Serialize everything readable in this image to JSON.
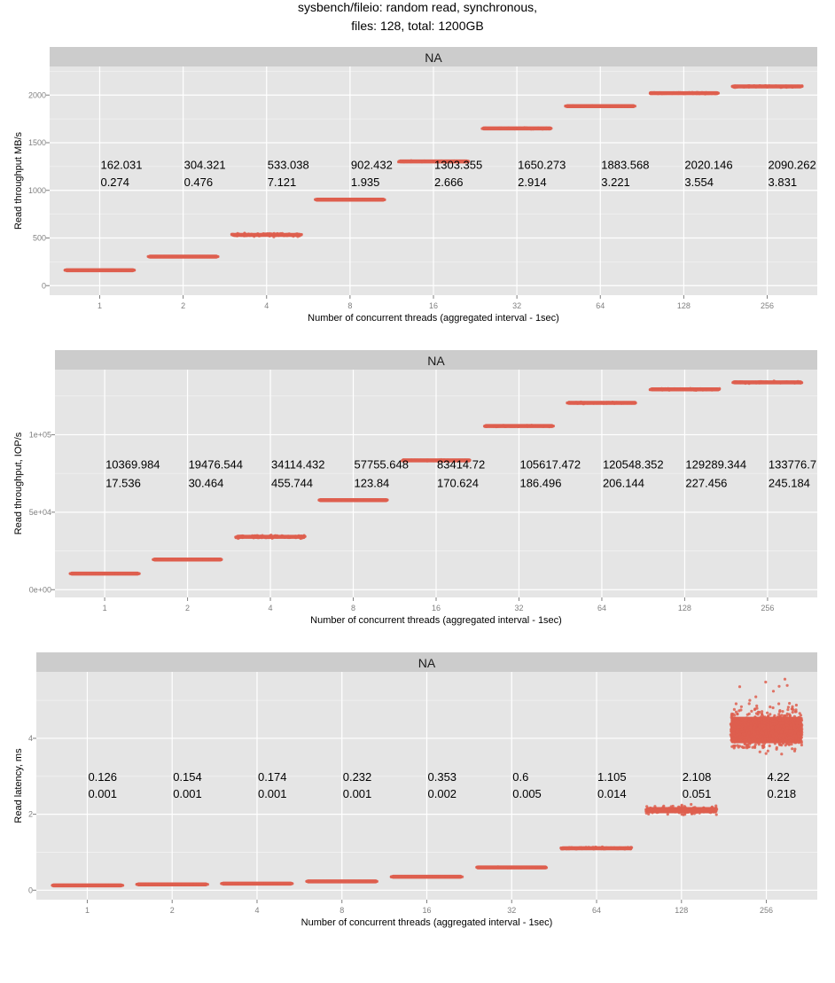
{
  "title_line1": "sysbench/fileio: random read, synchronous,",
  "title_line2": "files: 128, total: 1200GB",
  "colors": {
    "point": "#DE5F4F",
    "panel_bg": "#E5E5E5",
    "strip_bg": "#CCCCCC",
    "grid_major": "#FFFFFF",
    "grid_minor": "#F2F2F2"
  },
  "chart_data": [
    {
      "type": "scatter",
      "strip_label": "NA",
      "xlabel": "Number of concurrent threads (aggregated interval - 1sec)",
      "ylabel": "Read throughput MB/s",
      "categories": [
        "1",
        "2",
        "4",
        "8",
        "16",
        "32",
        "64",
        "128",
        "256"
      ],
      "ylim": [
        -100,
        2300
      ],
      "yticks": [
        0,
        500,
        1000,
        1500,
        2000
      ],
      "ytick_labels": [
        "0",
        "500",
        "1000",
        "1500",
        "2000"
      ],
      "grid": true,
      "series": [
        {
          "name": "mean",
          "values": [
            162.031,
            304.321,
            533.038,
            902.432,
            1303.355,
            1650.273,
            1883.568,
            2020.146,
            2090.262
          ]
        },
        {
          "name": "stddev",
          "values": [
            0.274,
            0.476,
            7.121,
            1.935,
            2.666,
            2.914,
            3.221,
            3.554,
            3.831
          ]
        }
      ],
      "annotations_line1": [
        "162.031",
        "304.321",
        "533.038",
        "902.432",
        "1303.355",
        "1650.273",
        "1883.568",
        "2020.146",
        "2090.262"
      ],
      "annotations_line2": [
        "0.274",
        "0.476",
        "7.121",
        "1.935",
        "2.666",
        "2.914",
        "3.221",
        "3.554",
        "3.831"
      ],
      "annotation_y": [
        1270,
        1090
      ]
    },
    {
      "type": "scatter",
      "strip_label": "NA",
      "xlabel": "Number of concurrent threads (aggregated interval - 1sec)",
      "ylabel": "Read throughput, IOP/s",
      "categories": [
        "1",
        "2",
        "4",
        "8",
        "16",
        "32",
        "64",
        "128",
        "256"
      ],
      "ylim": [
        -5000,
        142000
      ],
      "yticks": [
        0,
        50000,
        100000
      ],
      "ytick_labels": [
        "0e+00",
        "5e+04",
        "1e+05"
      ],
      "grid": true,
      "series": [
        {
          "name": "mean",
          "values": [
            10369.984,
            19476.544,
            34114.432,
            57755.648,
            83414.72,
            105617.472,
            120548.352,
            129289.344,
            133776.7
          ]
        },
        {
          "name": "stddev",
          "values": [
            17.536,
            30.464,
            455.744,
            123.84,
            170.624,
            186.496,
            206.144,
            227.456,
            245.184
          ]
        }
      ],
      "annotations_line1": [
        "10369.984",
        "19476.544",
        "34114.432",
        "57755.648",
        "83414.72",
        "105617.472",
        "120548.352",
        "129289.344",
        "133776.7"
      ],
      "annotations_line2": [
        "17.536",
        "30.464",
        "455.744",
        "123.84",
        "170.624",
        "186.496",
        "206.144",
        "227.456",
        "245.184"
      ],
      "annotation_y": [
        81000,
        69000
      ]
    },
    {
      "type": "scatter",
      "strip_label": "NA",
      "xlabel": "Number of concurrent threads (aggregated interval - 1sec)",
      "ylabel": "Read latency, ms",
      "categories": [
        "1",
        "2",
        "4",
        "8",
        "16",
        "32",
        "64",
        "128",
        "256"
      ],
      "ylim": [
        -0.25,
        5.75
      ],
      "yticks": [
        0,
        2,
        4
      ],
      "ytick_labels": [
        "0",
        "2",
        "4"
      ],
      "grid": true,
      "series": [
        {
          "name": "mean",
          "values": [
            0.126,
            0.154,
            0.174,
            0.232,
            0.353,
            0.6,
            1.105,
            2.108,
            4.22
          ]
        },
        {
          "name": "stddev",
          "values": [
            0.001,
            0.001,
            0.001,
            0.001,
            0.002,
            0.005,
            0.014,
            0.051,
            0.218
          ]
        }
      ],
      "annotations_line1": [
        "0.126",
        "0.154",
        "0.174",
        "0.232",
        "0.353",
        "0.6",
        "1.105",
        "2.108",
        "4.22"
      ],
      "annotations_line2": [
        "0.001",
        "0.001",
        "0.001",
        "0.001",
        "0.002",
        "0.005",
        "0.014",
        "0.051",
        "0.218"
      ],
      "annotation_y": [
        3.0,
        2.55
      ]
    }
  ]
}
